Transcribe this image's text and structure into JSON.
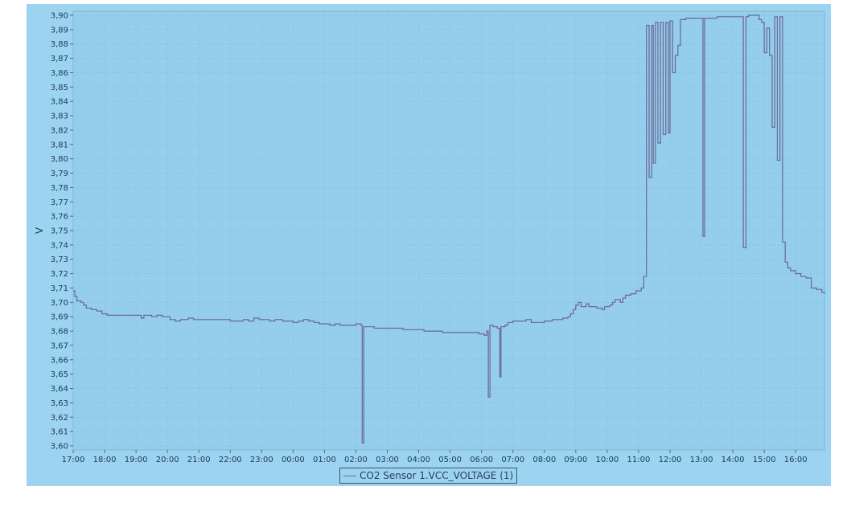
{
  "colors": {
    "panel_bg": "#9cd3f0",
    "plot_bg": "#95ceed",
    "grid": "#86bcd9",
    "line": "#6b6790",
    "text": "#1e3b52"
  },
  "chart_data": {
    "type": "line",
    "step": true,
    "title": "",
    "xlabel": "",
    "ylabel": "V",
    "ylim": [
      3.6,
      3.9
    ],
    "y_ticks": [
      "3,60",
      "3,61",
      "3,62",
      "3,63",
      "3,64",
      "3,65",
      "3,66",
      "3,67",
      "3,68",
      "3,69",
      "3,70",
      "3,71",
      "3,72",
      "3,73",
      "3,74",
      "3,75",
      "3,76",
      "3,77",
      "3,78",
      "3,79",
      "3,80",
      "3,81",
      "3,82",
      "3,83",
      "3,84",
      "3,85",
      "3,86",
      "3,87",
      "3,88",
      "3,89",
      "3,90"
    ],
    "x_range": [
      "17:00",
      "16:55"
    ],
    "x_ticks": [
      "17:00",
      "18:00",
      "19:00",
      "20:00",
      "21:00",
      "22:00",
      "23:00",
      "00:00",
      "01:00",
      "02:00",
      "03:00",
      "04:00",
      "05:00",
      "06:00",
      "07:00",
      "08:00",
      "09:00",
      "10:00",
      "11:00",
      "12:00",
      "13:00",
      "14:00",
      "15:00",
      "16:00"
    ],
    "grid": true,
    "legend_position": "bottom-center",
    "series": [
      {
        "name": "CO2 Sensor 1.VCC_VOLTAGE (1)",
        "points": [
          [
            "17:00",
            3.708
          ],
          [
            "17:03",
            3.704
          ],
          [
            "17:07",
            3.701
          ],
          [
            "17:15",
            3.7
          ],
          [
            "17:20",
            3.698
          ],
          [
            "17:25",
            3.696
          ],
          [
            "17:35",
            3.695
          ],
          [
            "17:45",
            3.694
          ],
          [
            "17:55",
            3.692
          ],
          [
            "18:05",
            3.691
          ],
          [
            "18:15",
            3.691
          ],
          [
            "18:30",
            3.691
          ],
          [
            "19:00",
            3.691
          ],
          [
            "19:10",
            3.689
          ],
          [
            "19:15",
            3.691
          ],
          [
            "19:30",
            3.69
          ],
          [
            "19:40",
            3.691
          ],
          [
            "19:50",
            3.69
          ],
          [
            "20:05",
            3.688
          ],
          [
            "20:15",
            3.687
          ],
          [
            "20:25",
            3.688
          ],
          [
            "20:40",
            3.689
          ],
          [
            "20:50",
            3.688
          ],
          [
            "21:05",
            3.688
          ],
          [
            "21:20",
            3.688
          ],
          [
            "21:30",
            3.688
          ],
          [
            "21:45",
            3.688
          ],
          [
            "22:00",
            3.687
          ],
          [
            "22:15",
            3.687
          ],
          [
            "22:25",
            3.688
          ],
          [
            "22:35",
            3.687
          ],
          [
            "22:45",
            3.689
          ],
          [
            "22:55",
            3.688
          ],
          [
            "23:05",
            3.688
          ],
          [
            "23:15",
            3.687
          ],
          [
            "23:25",
            3.688
          ],
          [
            "23:40",
            3.687
          ],
          [
            "23:50",
            3.687
          ],
          [
            "00:00",
            3.686
          ],
          [
            "00:10",
            3.687
          ],
          [
            "00:20",
            3.688
          ],
          [
            "00:30",
            3.687
          ],
          [
            "00:40",
            3.686
          ],
          [
            "00:50",
            3.685
          ],
          [
            "01:00",
            3.685
          ],
          [
            "01:10",
            3.684
          ],
          [
            "01:20",
            3.685
          ],
          [
            "01:30",
            3.684
          ],
          [
            "01:45",
            3.684
          ],
          [
            "02:00",
            3.685
          ],
          [
            "02:10",
            3.684
          ],
          [
            "02:12",
            3.602
          ],
          [
            "02:15",
            3.683
          ],
          [
            "02:25",
            3.683
          ],
          [
            "02:35",
            3.682
          ],
          [
            "03:00",
            3.682
          ],
          [
            "03:15",
            3.682
          ],
          [
            "03:30",
            3.681
          ],
          [
            "03:45",
            3.681
          ],
          [
            "04:00",
            3.681
          ],
          [
            "04:10",
            3.68
          ],
          [
            "04:30",
            3.68
          ],
          [
            "04:45",
            3.679
          ],
          [
            "05:00",
            3.679
          ],
          [
            "05:15",
            3.679
          ],
          [
            "05:30",
            3.679
          ],
          [
            "05:45",
            3.679
          ],
          [
            "05:55",
            3.678
          ],
          [
            "06:05",
            3.677
          ],
          [
            "06:10",
            3.68
          ],
          [
            "06:13",
            3.634
          ],
          [
            "06:16",
            3.684
          ],
          [
            "06:22",
            3.683
          ],
          [
            "06:30",
            3.682
          ],
          [
            "06:35",
            3.648
          ],
          [
            "06:37",
            3.683
          ],
          [
            "06:45",
            3.684
          ],
          [
            "06:50",
            3.686
          ],
          [
            "07:00",
            3.687
          ],
          [
            "07:15",
            3.687
          ],
          [
            "07:25",
            3.688
          ],
          [
            "07:35",
            3.686
          ],
          [
            "07:50",
            3.686
          ],
          [
            "08:00",
            3.687
          ],
          [
            "08:15",
            3.688
          ],
          [
            "08:25",
            3.688
          ],
          [
            "08:35",
            3.689
          ],
          [
            "08:45",
            3.69
          ],
          [
            "08:50",
            3.692
          ],
          [
            "08:55",
            3.695
          ],
          [
            "09:00",
            3.698
          ],
          [
            "09:05",
            3.7
          ],
          [
            "09:10",
            3.697
          ],
          [
            "09:20",
            3.699
          ],
          [
            "09:25",
            3.697
          ],
          [
            "09:40",
            3.696
          ],
          [
            "09:50",
            3.695
          ],
          [
            "09:55",
            3.697
          ],
          [
            "10:05",
            3.698
          ],
          [
            "10:10",
            3.7
          ],
          [
            "10:15",
            3.702
          ],
          [
            "10:25",
            3.7
          ],
          [
            "10:30",
            3.703
          ],
          [
            "10:35",
            3.705
          ],
          [
            "10:45",
            3.706
          ],
          [
            "10:55",
            3.708
          ],
          [
            "11:05",
            3.71
          ],
          [
            "11:10",
            3.718
          ],
          [
            "11:15",
            3.893
          ],
          [
            "11:20",
            3.787
          ],
          [
            "11:25",
            3.893
          ],
          [
            "11:28",
            3.797
          ],
          [
            "11:32",
            3.895
          ],
          [
            "11:37",
            3.811
          ],
          [
            "11:42",
            3.895
          ],
          [
            "11:47",
            3.817
          ],
          [
            "11:52",
            3.895
          ],
          [
            "11:57",
            3.818
          ],
          [
            "12:00",
            3.896
          ],
          [
            "12:05",
            3.86
          ],
          [
            "12:10",
            3.872
          ],
          [
            "12:15",
            3.879
          ],
          [
            "12:20",
            3.897
          ],
          [
            "12:25",
            3.897
          ],
          [
            "12:30",
            3.898
          ],
          [
            "12:45",
            3.898
          ],
          [
            "13:00",
            3.898
          ],
          [
            "13:03",
            3.746
          ],
          [
            "13:06",
            3.898
          ],
          [
            "13:15",
            3.898
          ],
          [
            "13:30",
            3.899
          ],
          [
            "13:45",
            3.899
          ],
          [
            "14:00",
            3.899
          ],
          [
            "14:15",
            3.899
          ],
          [
            "14:20",
            3.738
          ],
          [
            "14:25",
            3.899
          ],
          [
            "14:30",
            3.9
          ],
          [
            "14:40",
            3.9
          ],
          [
            "14:50",
            3.897
          ],
          [
            "14:55",
            3.895
          ],
          [
            "15:00",
            3.874
          ],
          [
            "15:05",
            3.891
          ],
          [
            "15:10",
            3.872
          ],
          [
            "15:15",
            3.822
          ],
          [
            "15:20",
            3.899
          ],
          [
            "15:25",
            3.799
          ],
          [
            "15:30",
            3.899
          ],
          [
            "15:35",
            3.742
          ],
          [
            "15:40",
            3.728
          ],
          [
            "15:45",
            3.724
          ],
          [
            "15:50",
            3.722
          ],
          [
            "16:00",
            3.72
          ],
          [
            "16:10",
            3.718
          ],
          [
            "16:20",
            3.717
          ],
          [
            "16:30",
            3.71
          ],
          [
            "16:40",
            3.709
          ],
          [
            "16:50",
            3.707
          ],
          [
            "16:55",
            3.706
          ]
        ]
      }
    ]
  }
}
